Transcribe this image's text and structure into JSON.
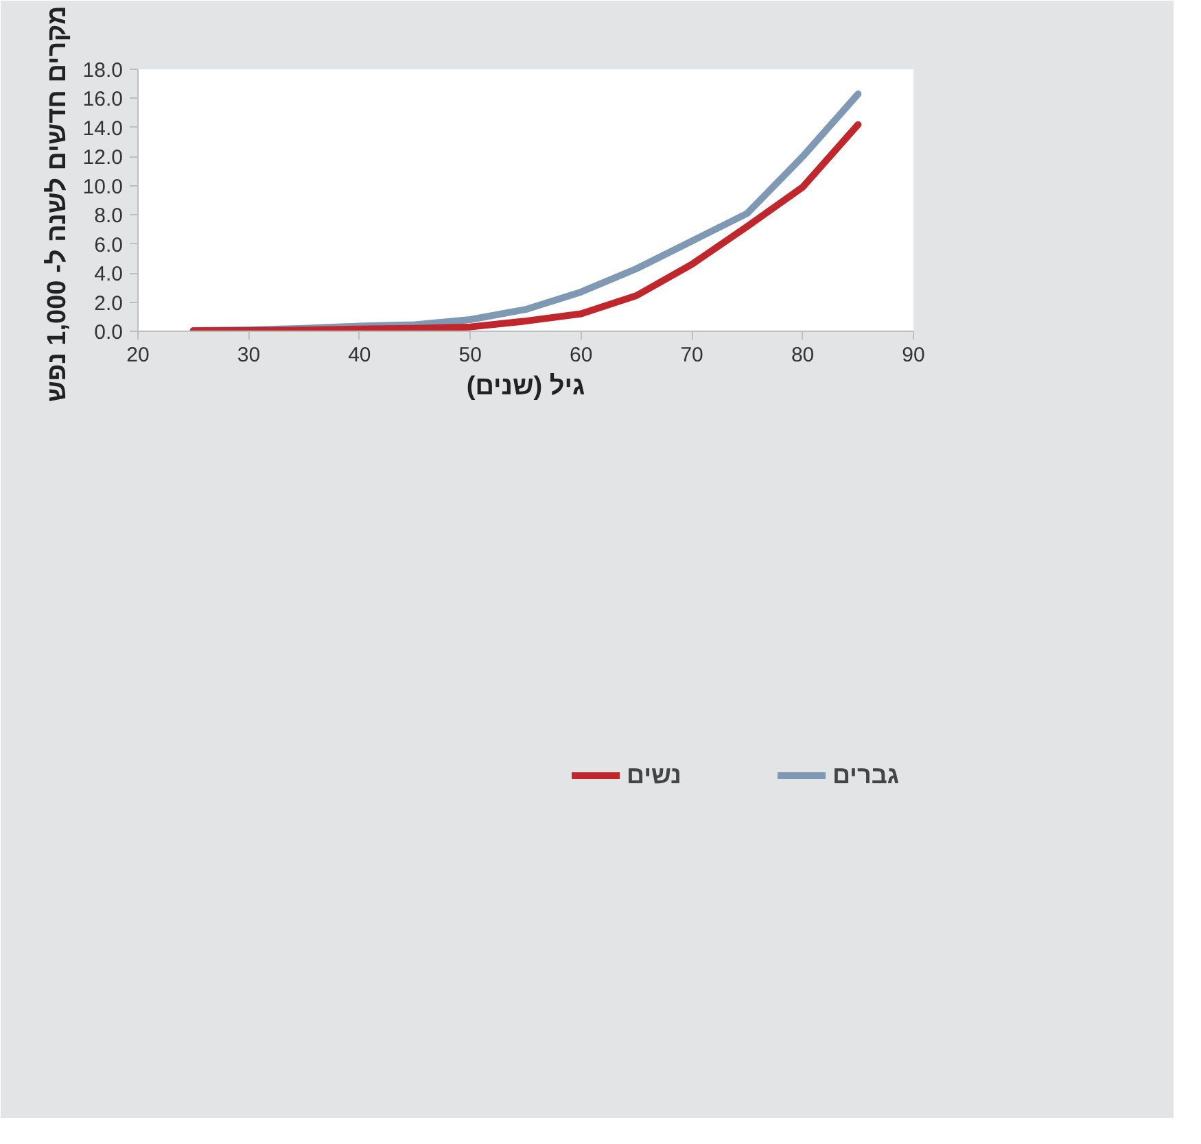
{
  "chart_data": {
    "type": "line",
    "xlabel": "גיל (שנים)",
    "ylabel": "מקרים חדשים לשנה ל- 1,000  נפש",
    "x": [
      25,
      30,
      35,
      40,
      45,
      50,
      55,
      60,
      65,
      70,
      75,
      80,
      85
    ],
    "series": [
      {
        "name": "גברים",
        "color": "#7f99b5",
        "values": [
          0.05,
          0.1,
          0.2,
          0.35,
          0.45,
          0.8,
          1.5,
          2.7,
          4.3,
          6.2,
          8.1,
          12.0,
          16.3
        ]
      },
      {
        "name": "נשים",
        "color": "#c0272d",
        "values": [
          0.03,
          0.05,
          0.08,
          0.15,
          0.2,
          0.3,
          0.7,
          1.2,
          2.45,
          4.6,
          7.2,
          9.9,
          14.2
        ]
      }
    ],
    "xlim": [
      20,
      90
    ],
    "xticks": [
      20,
      30,
      40,
      50,
      60,
      70,
      80,
      90
    ],
    "ylim": [
      0,
      18
    ],
    "yticks": [
      {
        "value": 0,
        "label": "0.0"
      },
      {
        "value": 2,
        "label": "2.0"
      },
      {
        "value": 4,
        "label": "4.0"
      },
      {
        "value": 6,
        "label": "6.0"
      },
      {
        "value": 8,
        "label": "8.0"
      },
      {
        "value": 10,
        "label": "10.0"
      },
      {
        "value": 12,
        "label": "12.0"
      },
      {
        "value": 14,
        "label": "14.0"
      },
      {
        "value": 16,
        "label": "16.0"
      },
      {
        "value": 18,
        "label": "18.0"
      }
    ],
    "grid": false,
    "legend": "bottom",
    "marker": "none",
    "line_style": "solid"
  }
}
